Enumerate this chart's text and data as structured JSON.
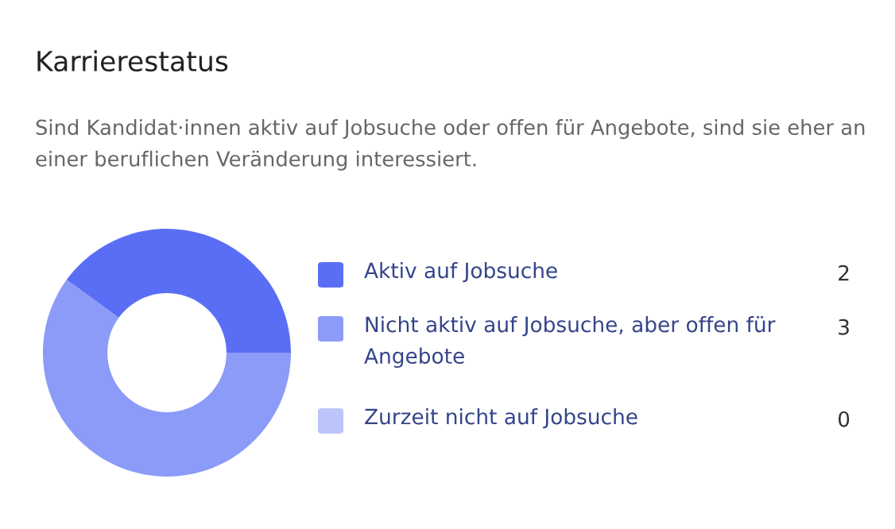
{
  "chart_data": {
    "type": "donut",
    "title": "Karrierestatus",
    "subtitle": "Sind Kandidat·innen aktiv auf Jobsuche oder offen für Angebote, sind sie eher an einer beruflichen Veränderung interessiert.",
    "categories": [
      "Aktiv auf Jobsuche",
      "Nicht aktiv auf Jobsuche, aber offen für Angebote",
      "Zurzeit nicht auf Jobsuche"
    ],
    "values": [
      2,
      3,
      0
    ],
    "colors": [
      "#5a6ef5",
      "#8b9bf7",
      "#bcc5fa"
    ],
    "value_labels": [
      "2",
      "3",
      "0"
    ],
    "legend": "right"
  }
}
